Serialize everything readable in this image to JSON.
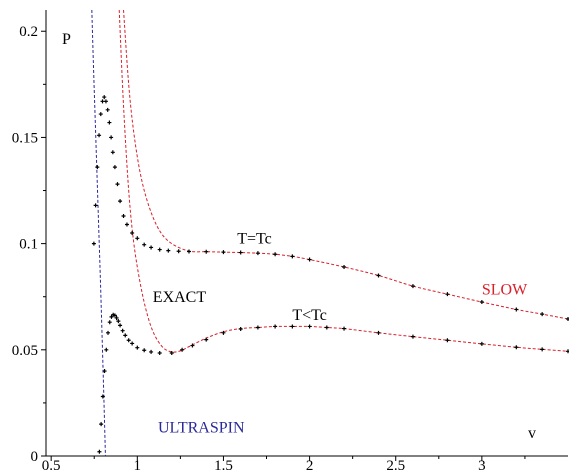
{
  "chart_data": {
    "type": "line",
    "title": "",
    "xlabel": "v",
    "ylabel": "P",
    "xlim": [
      0.47,
      3.5
    ],
    "ylim": [
      0,
      0.21
    ],
    "x_ticks": [
      {
        "value": 0.5,
        "label": "0.5"
      },
      {
        "value": 1,
        "label": "1"
      },
      {
        "value": 1.5,
        "label": "1.5"
      },
      {
        "value": 2,
        "label": "2"
      },
      {
        "value": 2.5,
        "label": "2.5"
      },
      {
        "value": 3,
        "label": "3"
      }
    ],
    "y_ticks": [
      {
        "value": 0,
        "label": "0"
      },
      {
        "value": 0.05,
        "label": "0.05"
      },
      {
        "value": 0.1,
        "label": "0.1"
      },
      {
        "value": 0.15,
        "label": "0.15"
      },
      {
        "value": 0.2,
        "label": "0.2"
      }
    ],
    "annotations": [
      {
        "text": "T=Tc",
        "x": 1.58,
        "y": 0.1,
        "color": "#000000"
      },
      {
        "text": "T<Tc",
        "x": 1.9,
        "y": 0.064,
        "color": "#000000"
      },
      {
        "text": "EXACT",
        "x": 1.09,
        "y": 0.0725,
        "color": "#000000"
      },
      {
        "text": "SLOW",
        "x": 3.0,
        "y": 0.076,
        "color": "#d8202a"
      },
      {
        "text": "ULTRASPIN",
        "x": 1.12,
        "y": 0.011,
        "color": "#2a2a9a"
      }
    ],
    "series": [
      {
        "style": "dashed",
        "color": "#2a2a9a",
        "x": [
          0.736,
          0.745,
          0.755,
          0.765,
          0.775,
          0.785,
          0.795,
          0.805,
          0.815
        ],
        "y": [
          0.21,
          0.185,
          0.16,
          0.135,
          0.11,
          0.085,
          0.058,
          0.03,
          0.0
        ]
      },
      {
        "style": "dashed",
        "color": "#d8202a",
        "x": [
          0.92,
          0.95,
          0.98,
          1.02,
          1.07,
          1.13,
          1.2,
          1.3,
          1.4,
          1.5,
          1.6,
          1.7,
          1.8,
          1.9,
          2.0,
          2.2,
          2.4,
          2.6,
          2.8,
          3.0,
          3.2,
          3.35,
          3.5
        ],
        "y": [
          0.21,
          0.175,
          0.152,
          0.132,
          0.117,
          0.106,
          0.1,
          0.0965,
          0.0962,
          0.096,
          0.0958,
          0.0955,
          0.095,
          0.094,
          0.0925,
          0.089,
          0.085,
          0.08,
          0.0762,
          0.0725,
          0.069,
          0.0668,
          0.0645
        ]
      },
      {
        "style": "dashed",
        "color": "#d8202a",
        "x": [
          0.895,
          0.92,
          0.95,
          0.98,
          1.02,
          1.06,
          1.1,
          1.15,
          1.2,
          1.25,
          1.3,
          1.4,
          1.5,
          1.6,
          1.7,
          1.8,
          1.9,
          2.0,
          2.1,
          2.2,
          2.4,
          2.6,
          2.8,
          3.0,
          3.2,
          3.35,
          3.5
        ],
        "y": [
          0.21,
          0.165,
          0.125,
          0.1,
          0.08,
          0.066,
          0.057,
          0.051,
          0.049,
          0.0495,
          0.0515,
          0.0555,
          0.0585,
          0.06,
          0.0605,
          0.061,
          0.061,
          0.061,
          0.0605,
          0.06,
          0.058,
          0.0562,
          0.0545,
          0.0528,
          0.0512,
          0.0502,
          0.0493
        ]
      },
      {
        "style": "crosses",
        "color": "#000000",
        "x": [
          0.748,
          0.758,
          0.768,
          0.778,
          0.788,
          0.798,
          0.808,
          0.818,
          0.828,
          0.838,
          0.848,
          0.858,
          0.87,
          0.885,
          0.9,
          0.92,
          0.94,
          0.97,
          1.0,
          1.04,
          1.08,
          1.13,
          1.18,
          1.24,
          1.3,
          1.4,
          1.5,
          1.6,
          1.7,
          1.8,
          1.9,
          2.0,
          2.2,
          2.4,
          2.6,
          2.8,
          3.0,
          3.2,
          3.35,
          3.5
        ],
        "y": [
          0.1,
          0.118,
          0.136,
          0.151,
          0.161,
          0.167,
          0.169,
          0.167,
          0.163,
          0.157,
          0.15,
          0.143,
          0.136,
          0.128,
          0.12,
          0.113,
          0.109,
          0.105,
          0.1025,
          0.0995,
          0.0982,
          0.0972,
          0.0967,
          0.0964,
          0.0963,
          0.0962,
          0.096,
          0.0958,
          0.0955,
          0.095,
          0.094,
          0.0925,
          0.089,
          0.085,
          0.08,
          0.0762,
          0.0725,
          0.069,
          0.0668,
          0.0645
        ]
      },
      {
        "style": "crosses",
        "color": "#000000",
        "x": [
          0.78,
          0.79,
          0.8,
          0.81,
          0.82,
          0.83,
          0.84,
          0.85,
          0.86,
          0.87,
          0.88,
          0.89,
          0.9,
          0.915,
          0.93,
          0.95,
          0.97,
          1.0,
          1.04,
          1.08,
          1.13,
          1.2,
          1.26,
          1.32,
          1.4,
          1.5,
          1.6,
          1.7,
          1.8,
          1.9,
          2.0,
          2.1,
          2.2,
          2.4,
          2.6,
          2.8,
          3.0,
          3.2,
          3.35,
          3.5
        ],
        "y": [
          0.002,
          0.015,
          0.028,
          0.04,
          0.05,
          0.058,
          0.063,
          0.0655,
          0.0665,
          0.0662,
          0.065,
          0.0635,
          0.0615,
          0.059,
          0.0568,
          0.0545,
          0.053,
          0.051,
          0.0498,
          0.049,
          0.0485,
          0.0485,
          0.05,
          0.052,
          0.0548,
          0.058,
          0.0598,
          0.0605,
          0.061,
          0.061,
          0.061,
          0.0605,
          0.06,
          0.058,
          0.0562,
          0.0545,
          0.0528,
          0.0512,
          0.0502,
          0.0493
        ]
      }
    ]
  }
}
